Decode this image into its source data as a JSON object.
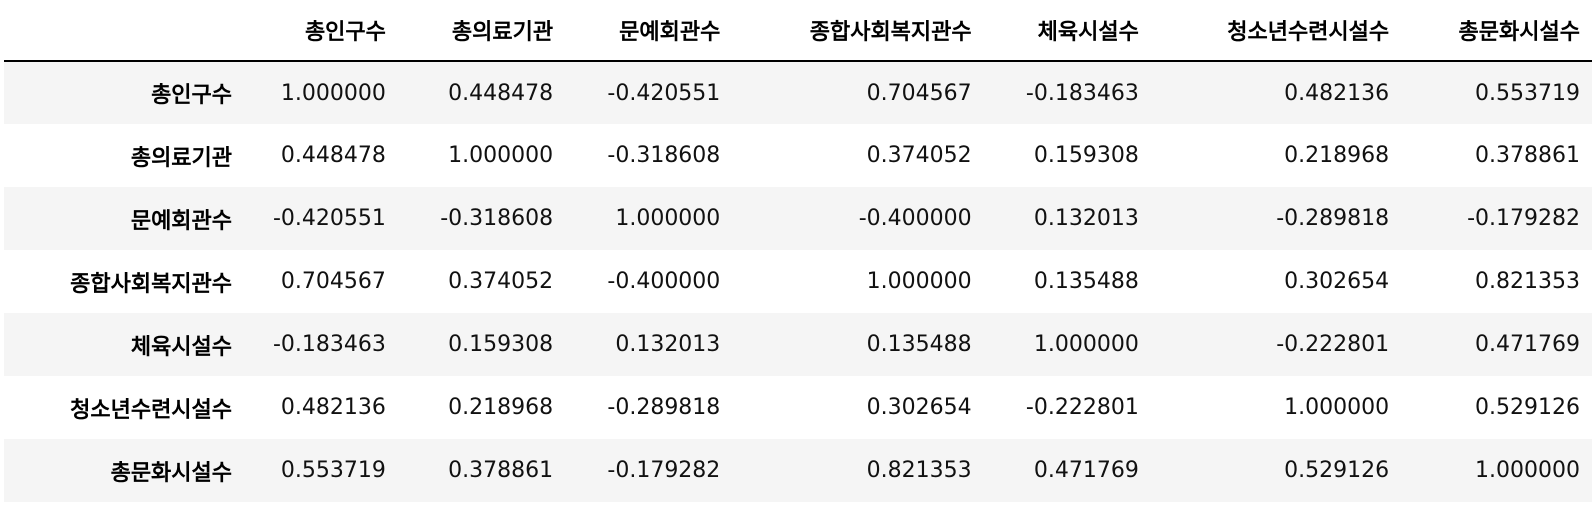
{
  "table": {
    "columns": [
      "총인구수",
      "총의료기관",
      "문예회관수",
      "종합사회복지관수",
      "체육시설수",
      "청소년수련시설수",
      "총문화시설수"
    ],
    "rows": [
      {
        "label": "총인구수",
        "values": [
          "1.000000",
          "0.448478",
          "-0.420551",
          "0.704567",
          "-0.183463",
          "0.482136",
          "0.553719"
        ]
      },
      {
        "label": "총의료기관",
        "values": [
          "0.448478",
          "1.000000",
          "-0.318608",
          "0.374052",
          "0.159308",
          "0.218968",
          "0.378861"
        ]
      },
      {
        "label": "문예회관수",
        "values": [
          "-0.420551",
          "-0.318608",
          "1.000000",
          "-0.400000",
          "0.132013",
          "-0.289818",
          "-0.179282"
        ]
      },
      {
        "label": "종합사회복지관수",
        "values": [
          "0.704567",
          "0.374052",
          "-0.400000",
          "1.000000",
          "0.135488",
          "0.302654",
          "0.821353"
        ]
      },
      {
        "label": "체육시설수",
        "values": [
          "-0.183463",
          "0.159308",
          "0.132013",
          "0.135488",
          "1.000000",
          "-0.222801",
          "0.471769"
        ]
      },
      {
        "label": "청소년수련시설수",
        "values": [
          "0.482136",
          "0.218968",
          "-0.289818",
          "0.302654",
          "-0.222801",
          "1.000000",
          "0.529126"
        ]
      },
      {
        "label": "총문화시설수",
        "values": [
          "0.553719",
          "0.378861",
          "-0.179282",
          "0.821353",
          "0.471769",
          "0.529126",
          "1.000000"
        ]
      }
    ]
  }
}
